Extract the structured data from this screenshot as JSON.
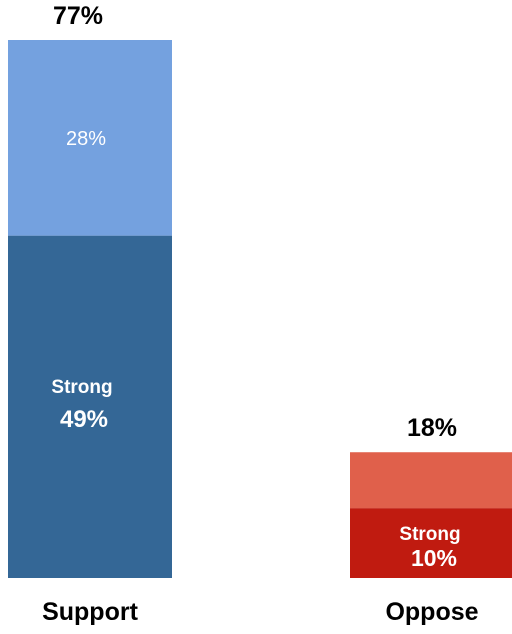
{
  "chart_data": {
    "type": "bar",
    "stacked": true,
    "categories": [
      "Support",
      "Oppose"
    ],
    "totals": [
      77,
      18
    ],
    "total_labels": [
      "77%",
      "18%"
    ],
    "series": [
      {
        "name": "Strong",
        "values": [
          49,
          10
        ],
        "value_labels": [
          "49%",
          "10%"
        ],
        "colors": [
          "#346796",
          "#c01b10"
        ],
        "label_colors": [
          "#ffffff",
          "#ffffff"
        ]
      },
      {
        "values": [
          28,
          8
        ],
        "value_labels": [
          "28%",
          ""
        ],
        "colors": [
          "#74a1df",
          "#e0604b"
        ],
        "label_colors": [
          "#ffffff",
          "#ffffff"
        ]
      }
    ],
    "ylim": [
      0,
      77
    ],
    "grid": false,
    "legend": "none"
  }
}
